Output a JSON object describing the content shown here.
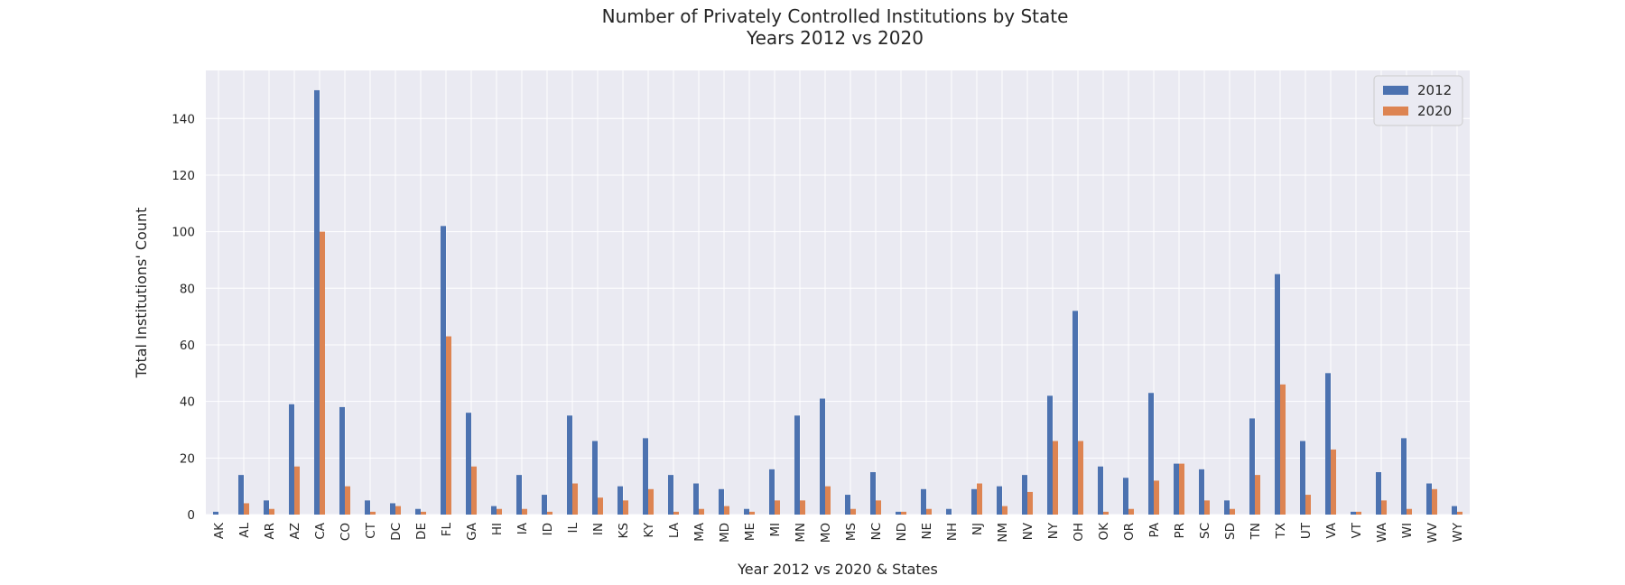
{
  "chart_data": {
    "type": "bar",
    "title_lines": [
      "Number of Privately Controlled Institutions by State",
      "Years 2012 vs 2020"
    ],
    "xlabel": "Year 2012 vs 2020 & States",
    "ylabel": "Total Institutions' Count",
    "ylim": [
      0,
      157
    ],
    "yticks": [
      0,
      20,
      40,
      60,
      80,
      100,
      120,
      140
    ],
    "grid": true,
    "legend_position": "top-right",
    "categories": [
      "AK",
      "AL",
      "AR",
      "AZ",
      "CA",
      "CO",
      "CT",
      "DC",
      "DE",
      "FL",
      "GA",
      "HI",
      "IA",
      "ID",
      "IL",
      "IN",
      "KS",
      "KY",
      "LA",
      "MA",
      "MD",
      "ME",
      "MI",
      "MN",
      "MO",
      "MS",
      "NC",
      "ND",
      "NE",
      "NH",
      "NJ",
      "NM",
      "NV",
      "NY",
      "OH",
      "OK",
      "OR",
      "PA",
      "PR",
      "SC",
      "SD",
      "TN",
      "TX",
      "UT",
      "VA",
      "VT",
      "WA",
      "WI",
      "WV",
      "WY"
    ],
    "series": [
      {
        "name": "2012",
        "color": "#4c72b0",
        "values": [
          1,
          14,
          5,
          39,
          150,
          38,
          5,
          4,
          2,
          102,
          36,
          3,
          14,
          7,
          35,
          26,
          10,
          27,
          14,
          11,
          9,
          2,
          16,
          35,
          41,
          7,
          15,
          1,
          9,
          2,
          9,
          10,
          14,
          42,
          72,
          17,
          13,
          43,
          18,
          16,
          5,
          34,
          85,
          26,
          50,
          1,
          15,
          27,
          11,
          3
        ]
      },
      {
        "name": "2020",
        "color": "#dd8452",
        "values": [
          0,
          4,
          2,
          17,
          100,
          10,
          1,
          3,
          1,
          63,
          17,
          2,
          2,
          1,
          11,
          6,
          5,
          9,
          1,
          2,
          3,
          1,
          5,
          5,
          10,
          2,
          5,
          1,
          2,
          0,
          11,
          3,
          8,
          26,
          26,
          1,
          2,
          12,
          18,
          5,
          2,
          14,
          46,
          7,
          23,
          1,
          5,
          2,
          9,
          1
        ]
      }
    ]
  },
  "colors": {
    "plot_background": "#eaeaf2",
    "grid": "#ffffff",
    "text": "#262626"
  }
}
